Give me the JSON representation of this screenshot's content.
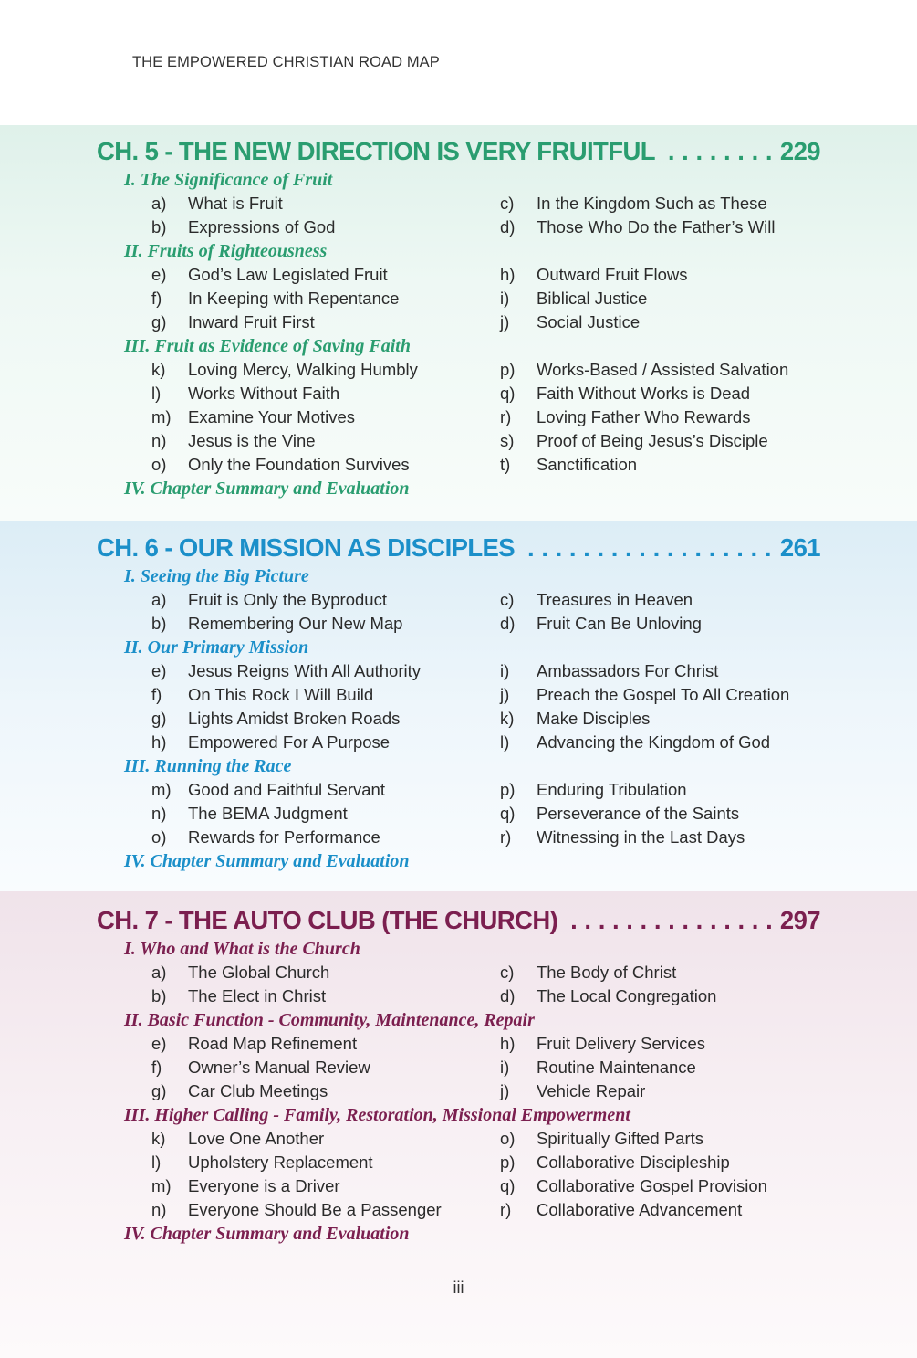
{
  "running_head": "THE EMPOWERED CHRISTIAN ROAD MAP",
  "folio": "iii",
  "colors": {
    "ch5": "#2a9d70",
    "ch6": "#1b8fc9",
    "ch7": "#7b1f4f"
  },
  "chapters": [
    {
      "title": "CH. 5 - THE NEW DIRECTION IS VERY FRUITFUL",
      "page": "229",
      "sections": [
        {
          "title": "I. The Significance of Fruit",
          "rows": [
            [
              "a)",
              "What is Fruit",
              "c)",
              "In the Kingdom Such as These"
            ],
            [
              "b)",
              "Expressions of God",
              "d)",
              "Those Who Do the Father’s Will"
            ]
          ]
        },
        {
          "title": "II. Fruits of Righteousness",
          "rows": [
            [
              "e)",
              "God’s Law Legislated Fruit",
              "h)",
              "Outward Fruit Flows"
            ],
            [
              "f)",
              "In Keeping with Repentance",
              "i)",
              "Biblical Justice"
            ],
            [
              "g)",
              "Inward Fruit First",
              "j)",
              "Social Justice"
            ]
          ]
        },
        {
          "title": "III. Fruit as Evidence of Saving Faith",
          "rows": [
            [
              "k)",
              "Loving Mercy, Walking Humbly",
              "p)",
              "Works-Based / Assisted Salvation"
            ],
            [
              "l)",
              "Works Without Faith",
              "q)",
              "Faith Without Works is Dead"
            ],
            [
              "m)",
              "Examine Your Motives",
              "r)",
              "Loving Father Who Rewards"
            ],
            [
              "n)",
              "Jesus is the Vine",
              "s)",
              "Proof of Being Jesus’s Disciple"
            ],
            [
              "o)",
              "Only the Foundation Survives",
              "t)",
              "Sanctification"
            ]
          ]
        },
        {
          "title": "IV. Chapter Summary and Evaluation",
          "rows": []
        }
      ]
    },
    {
      "title": "CH. 6 - OUR MISSION AS DISCIPLES",
      "page": "261",
      "sections": [
        {
          "title": "I. Seeing the Big Picture",
          "rows": [
            [
              "a)",
              "Fruit is Only the Byproduct",
              "c)",
              "Treasures in Heaven"
            ],
            [
              "b)",
              "Remembering Our New Map",
              "d)",
              "Fruit Can Be Unloving"
            ]
          ]
        },
        {
          "title": "II. Our Primary Mission",
          "rows": [
            [
              "e)",
              "Jesus Reigns With All Authority",
              "i)",
              "Ambassadors For Christ"
            ],
            [
              "f)",
              "On This Rock I Will Build",
              "j)",
              "Preach the Gospel To All Creation"
            ],
            [
              "g)",
              "Lights Amidst Broken Roads",
              "k)",
              "Make Disciples"
            ],
            [
              "h)",
              "Empowered For A Purpose",
              "l)",
              "Advancing the Kingdom of God"
            ]
          ]
        },
        {
          "title": "III. Running the Race",
          "rows": [
            [
              "m)",
              "Good and Faithful Servant",
              "p)",
              "Enduring Tribulation"
            ],
            [
              "n)",
              "The BEMA Judgment",
              "q)",
              "Perseverance of the Saints"
            ],
            [
              "o)",
              "Rewards for Performance",
              "r)",
              "Witnessing in the Last Days"
            ]
          ]
        },
        {
          "title": "IV. Chapter Summary and Evaluation",
          "rows": []
        }
      ]
    },
    {
      "title": "CH. 7 - THE AUTO CLUB (THE CHURCH)",
      "page": "297",
      "sections": [
        {
          "title": "I. Who and What is the Church",
          "rows": [
            [
              "a)",
              "The Global Church",
              "c)",
              "The Body of Christ"
            ],
            [
              "b)",
              "The Elect in Christ",
              "d)",
              "The Local Congregation"
            ]
          ]
        },
        {
          "title": "II. Basic Function - Community, Maintenance, Repair",
          "rows": [
            [
              "e)",
              "Road Map Refinement",
              "h)",
              "Fruit Delivery Services"
            ],
            [
              "f)",
              "Owner’s Manual Review",
              "i)",
              "Routine Maintenance"
            ],
            [
              "g)",
              "Car Club Meetings",
              "j)",
              "Vehicle Repair"
            ]
          ]
        },
        {
          "title": "III. Higher Calling - Family, Restoration, Missional Empowerment",
          "rows": [
            [
              "k)",
              "Love One Another",
              "o)",
              "Spiritually Gifted Parts"
            ],
            [
              "l)",
              "Upholstery Replacement",
              "p)",
              "Collaborative Discipleship"
            ],
            [
              "m)",
              "Everyone is a Driver",
              "q)",
              "Collaborative Gospel Provision"
            ],
            [
              "n)",
              "Everyone Should Be a Passenger",
              "r)",
              "Collaborative Advancement"
            ]
          ]
        },
        {
          "title": "IV. Chapter Summary and Evaluation",
          "rows": []
        }
      ]
    }
  ]
}
